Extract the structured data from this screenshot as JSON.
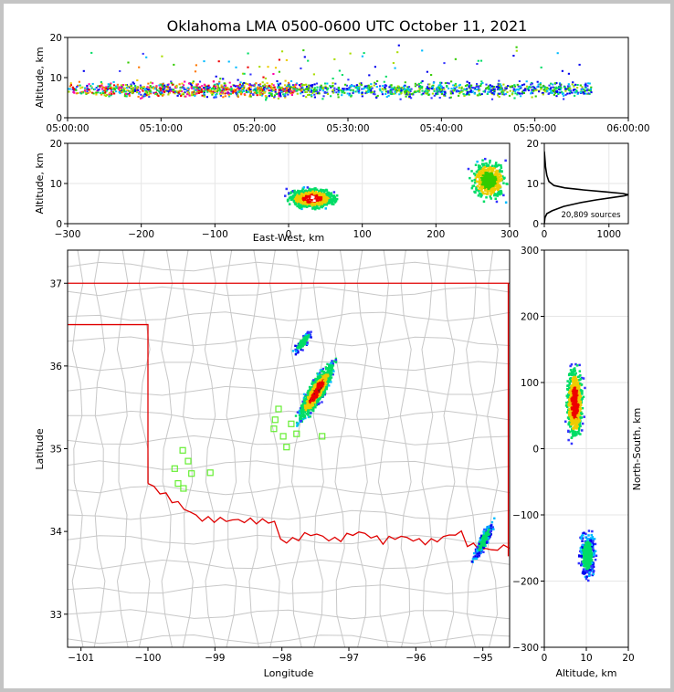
{
  "title": "Oklahoma LMA 0500-0600 UTC October 11, 2021",
  "chart_data": [
    {
      "panel": "time-height",
      "type": "scatter",
      "ylabel": "Altitude, km",
      "xlim": [
        "05:00:00",
        "06:00:00"
      ],
      "ylim": [
        0,
        20
      ],
      "x_ticks": [
        "05:00:00",
        "05:10:00",
        "05:20:00",
        "05:30:00",
        "05:40:00",
        "05:50:00",
        "06:00:00"
      ],
      "y_ticks": [
        "0",
        "10",
        "20"
      ],
      "grid": false
    },
    {
      "panel": "east-west-height",
      "type": "scatter",
      "xlabel": "East-West, km",
      "ylabel": "Altitude, km",
      "xlim": [
        -300,
        300
      ],
      "ylim": [
        0,
        20
      ],
      "x_ticks": [
        "−300",
        "−200",
        "−100",
        "0",
        "100",
        "200",
        "300"
      ],
      "y_ticks": [
        "0",
        "10",
        "20"
      ],
      "clusters": [
        {
          "x_center": 30,
          "x_halfwidth": 40,
          "y_center": 6.5,
          "y_halfwidth": 3
        },
        {
          "x_center": 270,
          "x_halfwidth": 30,
          "y_center": 11,
          "y_halfwidth": 6
        }
      ],
      "grid": true
    },
    {
      "panel": "altitude-histogram",
      "type": "line",
      "xlim": [
        0,
        1300
      ],
      "ylim": [
        0,
        20
      ],
      "x_ticks": [
        "0",
        "1000"
      ],
      "y_ticks": [
        "0",
        "10",
        "20"
      ],
      "annotation": "20,809 sources",
      "curve": [
        [
          0,
          0
        ],
        [
          10,
          1.5
        ],
        [
          40,
          2.5
        ],
        [
          120,
          3.2
        ],
        [
          300,
          4.3
        ],
        [
          550,
          5.2
        ],
        [
          800,
          5.9
        ],
        [
          1050,
          6.5
        ],
        [
          1230,
          6.9
        ],
        [
          1300,
          7.2
        ],
        [
          1220,
          7.5
        ],
        [
          950,
          7.9
        ],
        [
          600,
          8.4
        ],
        [
          320,
          8.9
        ],
        [
          150,
          9.5
        ],
        [
          70,
          10.5
        ],
        [
          40,
          12
        ],
        [
          20,
          14
        ],
        [
          10,
          16
        ],
        [
          0,
          18
        ]
      ],
      "grid": true
    },
    {
      "panel": "plan-view",
      "type": "scatter",
      "xlabel": "Longitude",
      "ylabel": "Latitude",
      "xlim": [
        -101.2,
        -94.6
      ],
      "ylim": [
        32.6,
        37.4
      ],
      "x_ticks": [
        "−101",
        "−100",
        "−99",
        "−98",
        "−97",
        "−96",
        "−95"
      ],
      "y_ticks": [
        "33",
        "34",
        "35",
        "36",
        "37"
      ],
      "clusters": [
        {
          "lon_center": -97.5,
          "lat_center": 35.7,
          "lon_halfwidth": 0.35,
          "lat_halfwidth": 0.45
        },
        {
          "lon_center": -97.7,
          "lat_center": 36.3,
          "lon_halfwidth": 0.2,
          "lat_halfwidth": 0.2
        },
        {
          "lon_center": -95.0,
          "lat_center": 33.9,
          "lon_halfwidth": 0.2,
          "lat_halfwidth": 0.3
        }
      ],
      "stations": [
        [
          -98.05,
          35.48
        ],
        [
          -98.1,
          35.35
        ],
        [
          -98.12,
          35.24
        ],
        [
          -97.98,
          35.15
        ],
        [
          -97.93,
          35.02
        ],
        [
          -97.78,
          35.18
        ],
        [
          -97.4,
          35.15
        ],
        [
          -97.86,
          35.3
        ],
        [
          -99.48,
          34.98
        ],
        [
          -99.4,
          34.85
        ],
        [
          -99.6,
          34.76
        ],
        [
          -99.35,
          34.7
        ],
        [
          -99.07,
          34.71
        ],
        [
          -99.55,
          34.58
        ],
        [
          -99.47,
          34.52
        ]
      ],
      "grid": false
    },
    {
      "panel": "north-south-height",
      "type": "scatter",
      "xlabel": "Altitude, km",
      "ylabel": "North-South, km",
      "xlim": [
        0,
        20
      ],
      "ylim": [
        -300,
        300
      ],
      "x_ticks": [
        "0",
        "10",
        "20"
      ],
      "y_ticks": [
        "−300",
        "−200",
        "−100",
        "0",
        "100",
        "200",
        "300"
      ],
      "clusters": [
        {
          "z_center": 7,
          "z_halfwidth": 2.5,
          "ns_center": 70,
          "ns_halfwidth": 70
        },
        {
          "z_center": 10,
          "z_halfwidth": 2.5,
          "ns_center": -160,
          "ns_halfwidth": 45
        }
      ],
      "grid": true
    }
  ],
  "colors": {
    "border": "#e00000",
    "county": "#c8c8c8",
    "station": "#66ee33"
  }
}
